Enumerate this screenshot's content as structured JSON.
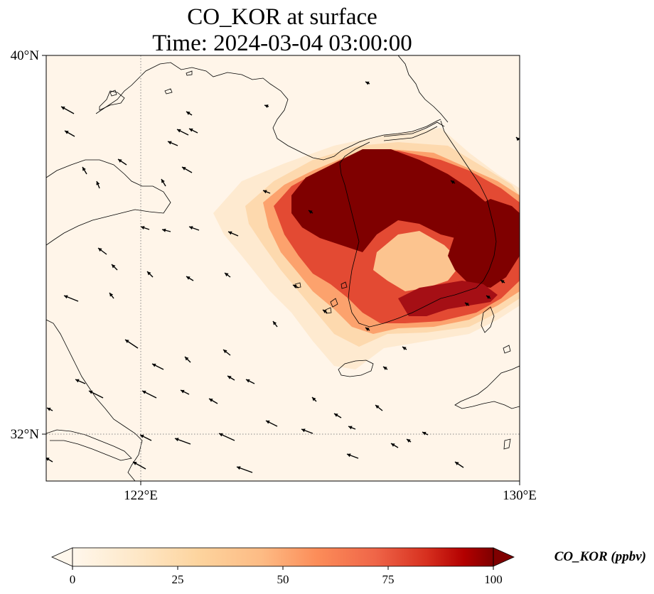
{
  "title": {
    "line1": "CO_KOR at surface",
    "line2": "Time: 2024-03-04 03:00:00"
  },
  "axes": {
    "lat_labels": [
      "40°N",
      "32°N"
    ],
    "lon_labels": [
      "122°E",
      "130°E"
    ],
    "lon_range": [
      120,
      130
    ],
    "lat_range": [
      31,
      40
    ]
  },
  "colorbar": {
    "label": "CO_KOR (ppbv)",
    "ticks": [
      "0",
      "25",
      "50",
      "75",
      "100"
    ],
    "range": [
      0,
      100
    ],
    "colormap": "OrRd",
    "extend": "both"
  },
  "map_colors": {
    "background": "#fff5e9",
    "low": "#fee7c8",
    "mid": "#fdb883",
    "high": "#ef6548",
    "max": "#7f0000"
  }
}
